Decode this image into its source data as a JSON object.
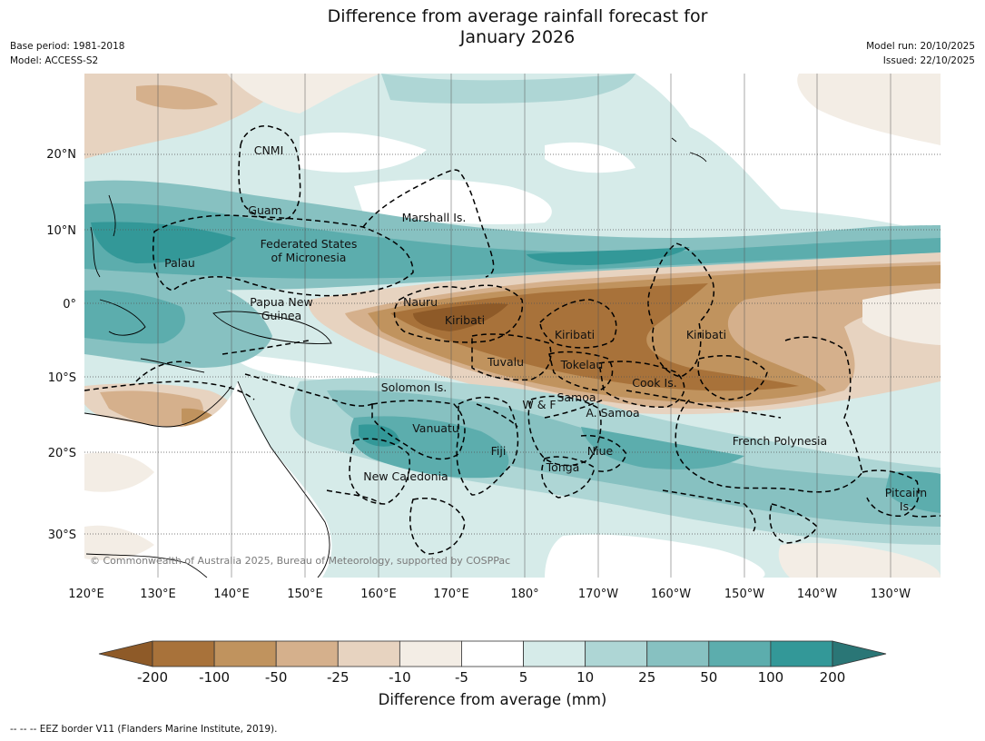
{
  "header": {
    "title_line1": "Difference from average rainfall forecast for",
    "title_line2": "January 2026",
    "base_period": "Base period: 1981-2018",
    "model": "Model: ACCESS-S2",
    "model_run": "Model run: 20/10/2025",
    "issued": "Issued: 22/10/2025"
  },
  "map": {
    "lon_labels": [
      "120°E",
      "130°E",
      "140°E",
      "150°E",
      "160°E",
      "170°E",
      "180°",
      "170°W",
      "160°W",
      "150°W",
      "140°W",
      "130°W"
    ],
    "lat_labels": [
      "20°N",
      "10°N",
      "0°",
      "10°S",
      "20°S",
      "30°S"
    ],
    "region_labels": [
      {
        "text": "CNMI"
      },
      {
        "text": "Guam"
      },
      {
        "text": "Marshall Is."
      },
      {
        "text": "Federated States"
      },
      {
        "text": "of Micronesia"
      },
      {
        "text": "Palau"
      },
      {
        "text": "Papua New"
      },
      {
        "text": "Guinea"
      },
      {
        "text": "Nauru"
      },
      {
        "text": "Kiribati"
      },
      {
        "text": "Kiribati"
      },
      {
        "text": "Kiribati"
      },
      {
        "text": "Tuvalu"
      },
      {
        "text": "Tokelau"
      },
      {
        "text": "Cook Is."
      },
      {
        "text": "Solomon Is."
      },
      {
        "text": "W & F"
      },
      {
        "text": "Samoa"
      },
      {
        "text": "A. Samoa"
      },
      {
        "text": "Vanuatu"
      },
      {
        "text": "Fiji"
      },
      {
        "text": "Niue"
      },
      {
        "text": "Tonga"
      },
      {
        "text": "French Polynesia"
      },
      {
        "text": "New Caledonia"
      },
      {
        "text": "Pitcairn"
      },
      {
        "text": "Is."
      }
    ],
    "copyright": "© Commonwealth of Australia 2025, Bureau of Meteorology, supported by COSPPac"
  },
  "colorbar": {
    "ticks": [
      "-200",
      "-100",
      "-50",
      "-25",
      "-10",
      "-5",
      "5",
      "10",
      "25",
      "50",
      "100",
      "200"
    ],
    "colors": [
      "#8e5a28",
      "#a8723a",
      "#c0935e",
      "#d5b08c",
      "#e7d3c0",
      "#f3ede5",
      "#ffffff",
      "#d6ebe9",
      "#aed6d5",
      "#87c1c1",
      "#5cadad",
      "#339898",
      "#2a7676"
    ],
    "label": "Difference from average (mm)"
  },
  "footer": {
    "legend": "-- -- -- EEZ border V11 (Flanders Marine Institute, 2019)."
  }
}
